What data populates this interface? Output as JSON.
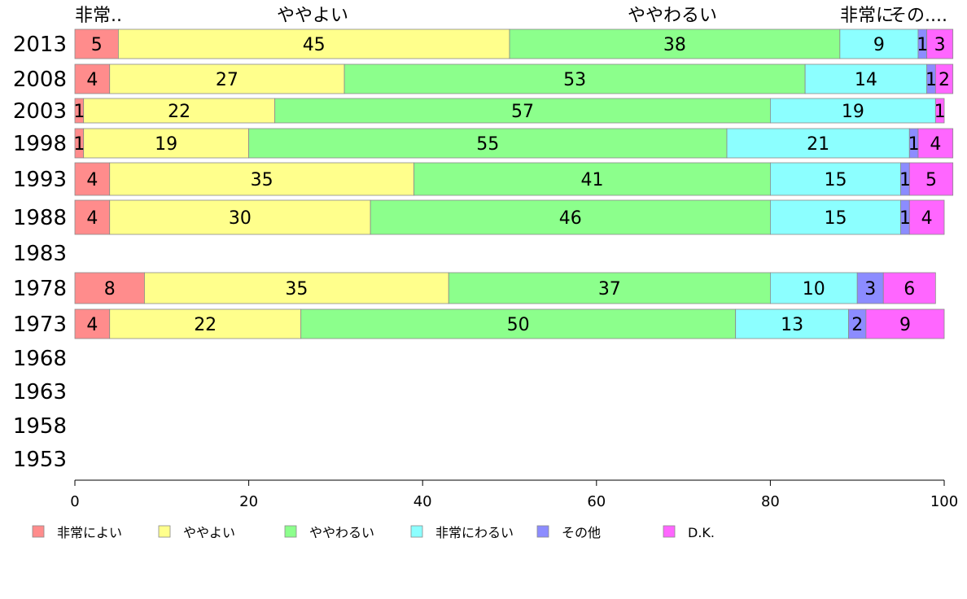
{
  "chart_data": {
    "type": "bar",
    "orientation": "horizontal",
    "stacked": true,
    "categories": [
      "2013",
      "2008",
      "2003",
      "1998",
      "1993",
      "1988",
      "1983",
      "1978",
      "1973",
      "1968",
      "1963",
      "1958",
      "1953"
    ],
    "top_labels": [
      "非常..",
      "ややよい",
      "ややわるい",
      "非常に",
      "その...."
    ],
    "xlim": [
      0,
      100
    ],
    "xticks": [
      "0",
      "20",
      "40",
      "60",
      "80",
      "100"
    ],
    "legend_position": "bottom",
    "grid": false,
    "series": [
      {
        "name": "非常によい",
        "color": "#ff8c8c",
        "values": [
          5,
          4,
          1,
          1,
          4,
          4,
          null,
          8,
          4,
          null,
          null,
          null,
          null
        ]
      },
      {
        "name": "ややよい",
        "color": "#ffff8c",
        "values": [
          45,
          27,
          22,
          19,
          35,
          30,
          null,
          35,
          22,
          null,
          null,
          null,
          null
        ]
      },
      {
        "name": "ややわるい",
        "color": "#8cff8c",
        "values": [
          38,
          53,
          57,
          55,
          41,
          46,
          null,
          37,
          50,
          null,
          null,
          null,
          null
        ]
      },
      {
        "name": "非常にわるい",
        "color": "#8cffff",
        "values": [
          9,
          14,
          19,
          21,
          15,
          15,
          null,
          10,
          13,
          null,
          null,
          null,
          null
        ]
      },
      {
        "name": "その他",
        "color": "#8c8cff",
        "values": [
          1,
          1,
          0,
          1,
          1,
          1,
          null,
          3,
          2,
          null,
          null,
          null,
          null
        ]
      },
      {
        "name": "D.K.",
        "color": "#ff66ff",
        "values": [
          3,
          2,
          1,
          4,
          5,
          4,
          null,
          6,
          9,
          null,
          null,
          null,
          null
        ]
      }
    ]
  }
}
